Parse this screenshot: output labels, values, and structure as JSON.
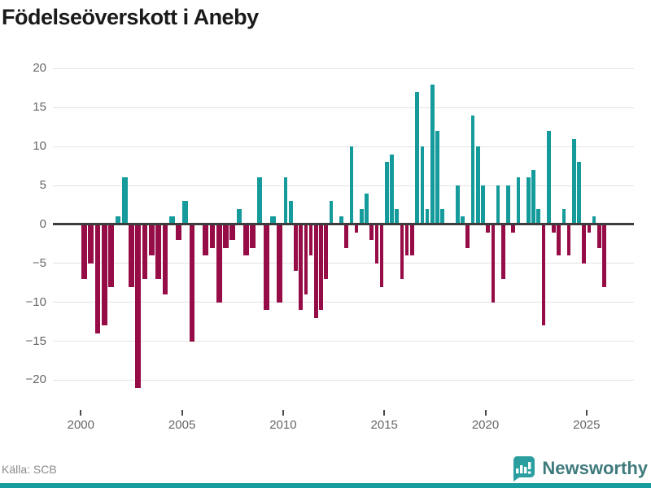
{
  "title": "Födelseöverskott i Aneby",
  "source": "Källa: SCB",
  "logo": {
    "text": "Newsworthy"
  },
  "colors": {
    "positive": "#159b9b",
    "negative": "#960c46",
    "grid": "#e3e3e3",
    "zero_line": "#3d3d3d",
    "axis_text": "#666666",
    "title_text": "#1a1a1a",
    "source_text": "#8b8b8b",
    "logo_text": "#3f7a7c",
    "logo_icon": "#2b9f9f",
    "bottom_strip": "#159b9b"
  },
  "chart_data": {
    "type": "bar",
    "title": "Födelseöverskott i Aneby",
    "xlabel": "",
    "ylabel": "",
    "grid": true,
    "legend": false,
    "xlim": [
      1998.62,
      2027.34
    ],
    "ylim": [
      -23.4,
      21.3
    ],
    "x_ticks": [
      2000,
      2005,
      2010,
      2015,
      2020,
      2025
    ],
    "x_tick_labels": [
      "2000",
      "2005",
      "2010",
      "2015",
      "2020",
      "2025"
    ],
    "y_ticks": [
      20,
      15,
      10,
      5,
      0,
      -5,
      -10,
      -15,
      -20
    ],
    "y_tick_labels": [
      "20",
      "15",
      "10",
      "5",
      "0",
      "−5",
      "−10",
      "−15",
      "−20"
    ],
    "periods": [
      {
        "before": 2010,
        "years": 0.3333
      },
      {
        "before": 2100,
        "years": 0.25
      }
    ],
    "points": [
      [
        2000.0,
        -7
      ],
      [
        2000.333,
        -5
      ],
      [
        2000.667,
        -14
      ],
      [
        2001.0,
        -13
      ],
      [
        2001.333,
        -8
      ],
      [
        2001.667,
        1
      ],
      [
        2002.0,
        6
      ],
      [
        2002.333,
        -8
      ],
      [
        2002.667,
        -21
      ],
      [
        2003.0,
        -7
      ],
      [
        2003.333,
        -4
      ],
      [
        2003.667,
        -7
      ],
      [
        2004.0,
        -9
      ],
      [
        2004.333,
        1
      ],
      [
        2004.667,
        -2
      ],
      [
        2005.0,
        3
      ],
      [
        2005.333,
        -15
      ],
      [
        2005.667,
        0
      ],
      [
        2006.0,
        -4
      ],
      [
        2006.333,
        -3
      ],
      [
        2006.667,
        -10
      ],
      [
        2007.0,
        -3
      ],
      [
        2007.333,
        -2
      ],
      [
        2007.667,
        2
      ],
      [
        2008.0,
        -4
      ],
      [
        2008.333,
        -3
      ],
      [
        2008.667,
        6
      ],
      [
        2009.0,
        -11
      ],
      [
        2009.333,
        1
      ],
      [
        2009.667,
        -10
      ],
      [
        2010.0,
        6
      ],
      [
        2010.25,
        3
      ],
      [
        2010.5,
        -6
      ],
      [
        2010.75,
        -11
      ],
      [
        2011.0,
        -9
      ],
      [
        2011.25,
        -4
      ],
      [
        2011.5,
        -12
      ],
      [
        2011.75,
        -11
      ],
      [
        2012.0,
        -7
      ],
      [
        2012.25,
        3
      ],
      [
        2012.5,
        0
      ],
      [
        2012.75,
        1
      ],
      [
        2013.0,
        -3
      ],
      [
        2013.25,
        10
      ],
      [
        2013.5,
        -1
      ],
      [
        2013.75,
        2
      ],
      [
        2014.0,
        4
      ],
      [
        2014.25,
        -2
      ],
      [
        2014.5,
        -5
      ],
      [
        2014.75,
        -8
      ],
      [
        2015.0,
        8
      ],
      [
        2015.25,
        9
      ],
      [
        2015.5,
        2
      ],
      [
        2015.75,
        -7
      ],
      [
        2016.0,
        -4
      ],
      [
        2016.25,
        -4
      ],
      [
        2016.5,
        17
      ],
      [
        2016.75,
        10
      ],
      [
        2017.0,
        2
      ],
      [
        2017.25,
        18
      ],
      [
        2017.5,
        12
      ],
      [
        2017.75,
        2
      ],
      [
        2018.0,
        0
      ],
      [
        2018.25,
        0
      ],
      [
        2018.5,
        5
      ],
      [
        2018.75,
        1
      ],
      [
        2019.0,
        -3
      ],
      [
        2019.25,
        14
      ],
      [
        2019.5,
        10
      ],
      [
        2019.75,
        5
      ],
      [
        2020.0,
        -1
      ],
      [
        2020.25,
        -10
      ],
      [
        2020.5,
        5
      ],
      [
        2020.75,
        -7
      ],
      [
        2021.0,
        5
      ],
      [
        2021.25,
        -1
      ],
      [
        2021.5,
        6
      ],
      [
        2021.75,
        0
      ],
      [
        2022.0,
        6
      ],
      [
        2022.25,
        7
      ],
      [
        2022.5,
        2
      ],
      [
        2022.75,
        -13
      ],
      [
        2023.0,
        12
      ],
      [
        2023.25,
        -1
      ],
      [
        2023.5,
        -4
      ],
      [
        2023.75,
        2
      ],
      [
        2024.0,
        -4
      ],
      [
        2024.25,
        11
      ],
      [
        2024.5,
        8
      ],
      [
        2024.75,
        -5
      ],
      [
        2025.0,
        -1
      ],
      [
        2025.25,
        1
      ],
      [
        2025.5,
        -3
      ],
      [
        2025.75,
        -8
      ]
    ]
  }
}
